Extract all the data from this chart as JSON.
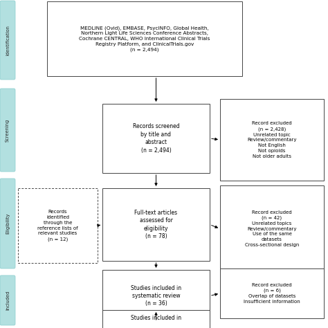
{
  "bg_color": "#ffffff",
  "sidebar_color": "#b2e0e0",
  "sidebar_labels": [
    "Identificatio\nn",
    "Screening",
    "Eligibility",
    "Included"
  ],
  "sidebar_display": [
    "Identification",
    "Screening",
    "Eligibility",
    "Included"
  ],
  "box_id_text": "MEDLINE (Ovid), EMBASE, PsycINFO, Global Health,\nNorthern Light Life Sciences Conference Abstracts,\nCochrane CENTRAL, WHO International Clinical Trials\nRegistry Platform, and ClinicalTrials.gov\n(n = 2,494)",
  "box_screen_text": "Records screened\nby title and\nabstract\n(n = 2,494)",
  "box_elig_text": "Full-text articles\nassessed for\neligibility\n(n = 78)",
  "box_sysrev_text": "Studies included in\nsystematic review\n(n = 36)",
  "box_final_text": "Studies included in",
  "box_excl1_text": "Record excluded\n(n = 2,428)\nUnrelated topic\nReview/commentary\nNot English\nNot opioids\nNot older adults",
  "box_excl2_text": "Record excluded\n(n = 42)\nUnrelated topics\nReview/commentary\nUse of the same\ndatasets\nCross-sectional design",
  "box_excl3_text": "Record excluded\n(n = 6)\nOverlap of datasets\nInsufficient information",
  "box_ref_text": "Records\nidentified\nthrough the\nreference lists of\nrelevant studies\n(n = 12)"
}
